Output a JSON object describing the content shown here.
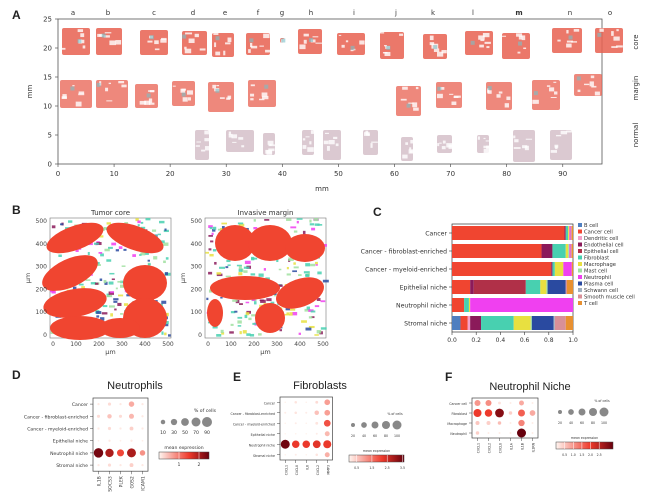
{
  "panels": {
    "A": {
      "letter": "A",
      "xlabel": "mm",
      "ylabel": "mm",
      "x_ticks": [
        "0",
        "10",
        "20",
        "30",
        "40",
        "50",
        "60",
        "70",
        "80",
        "90"
      ],
      "y_ticks": [
        "0",
        "5",
        "10",
        "15",
        "20",
        "25"
      ],
      "sample_labels": [
        "a",
        "b",
        "c",
        "d",
        "e",
        "f",
        "g",
        "h",
        "i",
        "j",
        "k",
        "l",
        "m",
        "n",
        "o"
      ],
      "row_labels": [
        "core",
        "margin",
        "normal"
      ]
    },
    "B": {
      "letter": "B",
      "plots": [
        {
          "title": "Tumor core",
          "xlabel": "µm",
          "ylabel": "µm",
          "x_ticks": [
            "0",
            "100",
            "200",
            "300",
            "400",
            "500"
          ],
          "y_ticks": [
            "0",
            "100",
            "200",
            "300",
            "400",
            "500"
          ]
        },
        {
          "title": "Invasive margin",
          "xlabel": "µm",
          "ylabel": "µm",
          "x_ticks": [
            "0",
            "100",
            "200",
            "300",
            "400",
            "500"
          ],
          "y_ticks": [
            "0",
            "100",
            "200",
            "300",
            "400",
            "500"
          ]
        }
      ]
    },
    "C": {
      "letter": "C"
    },
    "D": {
      "letter": "D",
      "title": "Neutrophils"
    },
    "E": {
      "letter": "E",
      "title": "Fibroblasts"
    },
    "F": {
      "letter": "F",
      "title": "Neutrophil Niche"
    }
  },
  "chart_data": [
    {
      "type": "bar",
      "orientation": "horizontal-stacked",
      "panel": "C",
      "categories": [
        "Cancer",
        "Cancer - fibroblast-enriched",
        "Cancer - myeloid-enriched",
        "Epithelial niche",
        "Neutrophil niche",
        "Stromal niche"
      ],
      "xlim": [
        0,
        1.0
      ],
      "x_ticks": [
        "0.0",
        "0.2",
        "0.4",
        "0.6",
        "0.8",
        "1.0"
      ],
      "legend_position": "right",
      "series": [
        {
          "name": "B cell",
          "color": "#4f7fc0",
          "values": [
            0.0,
            0.0,
            0.0,
            0.0,
            0.0,
            0.07
          ]
        },
        {
          "name": "Cancer cell",
          "color": "#f04530",
          "values": [
            0.93,
            0.74,
            0.82,
            0.15,
            0.1,
            0.06
          ]
        },
        {
          "name": "Dendritic cell",
          "color": "#f4a0c8",
          "values": [
            0.0,
            0.0,
            0.0,
            0.0,
            0.0,
            0.02
          ]
        },
        {
          "name": "Endothelial cell",
          "color": "#8b1a5a",
          "values": [
            0.01,
            0.09,
            0.01,
            0.03,
            0.0,
            0.09
          ]
        },
        {
          "name": "Epithelial cell",
          "color": "#b03048",
          "values": [
            0.0,
            0.0,
            0.0,
            0.43,
            0.0,
            0.0
          ]
        },
        {
          "name": "Fibroblast",
          "color": "#48d0b0",
          "values": [
            0.02,
            0.11,
            0.02,
            0.12,
            0.04,
            0.27
          ]
        },
        {
          "name": "Macrophage",
          "color": "#e8e040",
          "values": [
            0.01,
            0.02,
            0.07,
            0.05,
            0.01,
            0.14
          ]
        },
        {
          "name": "Mast cell",
          "color": "#a0e0a0",
          "values": [
            0.0,
            0.01,
            0.0,
            0.01,
            0.0,
            0.01
          ]
        },
        {
          "name": "Neutrophil",
          "color": "#f040f0",
          "values": [
            0.01,
            0.01,
            0.07,
            0.0,
            0.85,
            0.0
          ]
        },
        {
          "name": "Plasma cell",
          "color": "#2a4aa0",
          "values": [
            0.0,
            0.0,
            0.0,
            0.15,
            0.0,
            0.18
          ]
        },
        {
          "name": "Schwann cell",
          "color": "#a0b0c0",
          "values": [
            0.0,
            0.0,
            0.0,
            0.0,
            0.0,
            0.01
          ]
        },
        {
          "name": "Smooth muscle cell",
          "color": "#d89098",
          "values": [
            0.01,
            0.01,
            0.0,
            0.01,
            0.0,
            0.09
          ]
        },
        {
          "name": "T cell",
          "color": "#e89030",
          "values": [
            0.01,
            0.01,
            0.01,
            0.05,
            0.0,
            0.06
          ]
        }
      ]
    },
    {
      "type": "dotplot",
      "panel": "D",
      "title": "Neutrophils",
      "rows": [
        "Cancer",
        "Cancer - fibroblast-enriched",
        "Cancer - myeloid-enriched",
        "Epithelial niche",
        "Neutrophil niche",
        "Stromal niche"
      ],
      "columns": [
        "IL1B",
        "SOCS3",
        "PLEK",
        "G0S2",
        "ICAM1"
      ],
      "pct_cells": [
        [
          5,
          10,
          5,
          30,
          5
        ],
        [
          10,
          20,
          10,
          25,
          5
        ],
        [
          5,
          10,
          5,
          15,
          5
        ],
        [
          3,
          5,
          3,
          5,
          3
        ],
        [
          90,
          70,
          50,
          80,
          30
        ],
        [
          5,
          10,
          5,
          15,
          5
        ]
      ],
      "mean_expression": [
        [
          0.1,
          0.2,
          0.1,
          0.6,
          0.1
        ],
        [
          0.2,
          0.4,
          0.2,
          0.5,
          0.1
        ],
        [
          0.1,
          0.2,
          0.1,
          0.3,
          0.1
        ],
        [
          0.05,
          0.1,
          0.05,
          0.1,
          0.05
        ],
        [
          2.4,
          2.0,
          1.4,
          2.0,
          0.8
        ],
        [
          0.1,
          0.2,
          0.1,
          0.3,
          0.1
        ]
      ],
      "size_legend": {
        "title": "% of cells",
        "values": [
          "10",
          "30",
          "50",
          "70",
          "90"
        ]
      },
      "color_legend": {
        "title": "mean expression",
        "ticks": [
          "1",
          "2"
        ],
        "range": [
          0,
          2.5
        ]
      }
    },
    {
      "type": "dotplot",
      "panel": "E",
      "title": "Fibroblasts",
      "rows": [
        "Cancer",
        "Cancer - fibroblast-enriched",
        "Cancer - myeloid-enriched",
        "Epithelial niche",
        "Neutrophil niche",
        "Stromal niche"
      ],
      "columns": [
        "CXCL1",
        "CXCL8",
        "IL6",
        "CXCL2",
        "MMP3"
      ],
      "pct_cells": [
        [
          3,
          8,
          3,
          10,
          40
        ],
        [
          5,
          8,
          5,
          25,
          40
        ],
        [
          3,
          5,
          3,
          10,
          55
        ],
        [
          2,
          3,
          2,
          5,
          30
        ],
        [
          100,
          70,
          70,
          75,
          80
        ],
        [
          3,
          5,
          3,
          8,
          30
        ]
      ],
      "mean_expression": [
        [
          0.05,
          0.2,
          0.05,
          0.3,
          1.0
        ],
        [
          0.1,
          0.2,
          0.1,
          0.6,
          1.0
        ],
        [
          0.05,
          0.1,
          0.05,
          0.2,
          1.9
        ],
        [
          0.02,
          0.05,
          0.02,
          0.1,
          0.7
        ],
        [
          3.5,
          2.2,
          2.2,
          2.3,
          2.2
        ],
        [
          0.05,
          0.1,
          0.05,
          0.2,
          0.8
        ]
      ],
      "size_legend": {
        "title": "% of cells",
        "values": [
          "20",
          "40",
          "60",
          "80",
          "100"
        ]
      },
      "color_legend": {
        "title": "mean expression",
        "ticks": [
          "0.5",
          "1.5",
          "2.5",
          "3.5"
        ],
        "range": [
          0,
          3.6
        ]
      }
    },
    {
      "type": "dotplot",
      "panel": "F",
      "title": "Neutrophil Niche",
      "rows": [
        "Cancer cell",
        "Fibroblast",
        "Macrophage",
        "Neutrophil"
      ],
      "columns": [
        "CXCL1",
        "CXCL2",
        "CXCL8",
        "IL1A",
        "IL1B",
        "IL1RN"
      ],
      "pct_cells": [
        [
          45,
          45,
          10,
          5,
          30,
          5
        ],
        [
          80,
          70,
          95,
          15,
          60,
          40
        ],
        [
          20,
          20,
          15,
          5,
          50,
          5
        ],
        [
          15,
          5,
          5,
          5,
          100,
          5
        ]
      ],
      "mean_expression": [
        [
          1.0,
          1.1,
          0.2,
          0.1,
          0.8,
          0.1
        ],
        [
          2.0,
          2.0,
          3.0,
          0.4,
          1.6,
          0.8
        ],
        [
          0.5,
          0.4,
          0.6,
          0.1,
          1.2,
          0.1
        ],
        [
          0.4,
          0.1,
          0.1,
          0.1,
          3.3,
          0.1
        ]
      ],
      "size_legend": {
        "title": "% of cells",
        "values": [
          "20",
          "40",
          "60",
          "80",
          "100"
        ]
      },
      "color_legend": {
        "title": "mean expression",
        "ticks": [
          "0.5",
          "1.0",
          "1.5",
          "2.0",
          "2.5"
        ],
        "range": [
          0,
          3.3
        ]
      }
    }
  ]
}
